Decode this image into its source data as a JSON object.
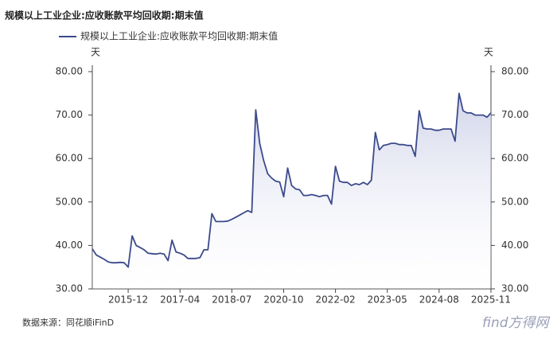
{
  "chart_data": {
    "type": "line",
    "title": "规模以上工业企业:应收账款平均回收期:期末值",
    "y_unit": "天",
    "y2_unit": "天",
    "source": "数据来源：同花顺iFinD",
    "watermark": "find方得网",
    "categories": [
      null,
      null,
      null,
      null,
      null,
      null,
      null,
      null,
      null,
      "2015-12",
      null,
      null,
      null,
      null,
      null,
      null,
      null,
      null,
      null,
      null,
      null,
      null,
      "2017-04",
      null,
      null,
      null,
      null,
      null,
      null,
      null,
      null,
      null,
      null,
      null,
      null,
      "2018-07",
      null,
      null,
      null,
      null,
      null,
      null,
      null,
      null,
      null,
      null,
      null,
      null,
      "2020-10",
      null,
      null,
      null,
      null,
      null,
      null,
      null,
      null,
      null,
      null,
      null,
      null,
      "2022-02",
      null,
      null,
      null,
      null,
      null,
      null,
      null,
      null,
      null,
      null,
      null,
      null,
      "2023-05",
      null,
      null,
      null,
      null,
      null,
      null,
      null,
      null,
      null,
      null,
      null,
      null,
      "2024-08",
      null,
      null,
      null,
      null,
      null,
      null,
      null,
      null,
      null,
      null,
      null,
      null,
      "2025-11"
    ],
    "series": [
      {
        "name": "规模以上工业企业:应收账款平均回收期:期末值",
        "color": "#3b4a8c",
        "values": [
          39.2,
          37.8,
          37.3,
          36.8,
          36.2,
          36,
          36,
          36.1,
          36,
          35,
          42.2,
          40,
          39.5,
          39,
          38.2,
          38.1,
          38,
          38.2,
          38,
          36.5,
          41.2,
          38.5,
          38.2,
          37.8,
          37,
          37,
          37,
          37.2,
          39,
          39,
          47.3,
          45.5,
          45.5,
          45.5,
          45.6,
          46,
          46.5,
          47,
          47.5,
          48,
          47.6,
          71.2,
          63.5,
          59.5,
          56.5,
          55.5,
          54.8,
          54.6,
          51.2,
          57.8,
          53.8,
          53,
          52.8,
          51.5,
          51.5,
          51.7,
          51.5,
          51.2,
          51.5,
          51.5,
          49.5,
          58.2,
          54.8,
          54.5,
          54.5,
          53.8,
          54.2,
          54,
          54.5,
          54,
          55,
          66,
          62,
          63,
          63.2,
          63.5,
          63.5,
          63.2,
          63.2,
          63,
          63,
          60.5,
          71,
          67,
          66.8,
          66.8,
          66.5,
          66.5,
          66.8,
          66.8,
          66.8,
          64,
          75,
          71,
          70.5,
          70.5,
          70,
          70,
          70,
          69.5,
          70.5
        ]
      }
    ],
    "ylim": [
      30,
      80
    ],
    "yticks": [
      {
        "value": 30,
        "label": "30.00"
      },
      {
        "value": 40,
        "label": "40.00"
      },
      {
        "value": 50,
        "label": "50.00"
      },
      {
        "value": 60,
        "label": "60.00"
      },
      {
        "value": 70,
        "label": "70.00"
      },
      {
        "value": 80,
        "label": "80.00"
      }
    ],
    "y2lim": [
      30,
      80
    ],
    "y2ticks": [
      {
        "value": 30,
        "label": "30.00"
      },
      {
        "value": 40,
        "label": "40.00"
      },
      {
        "value": 50,
        "label": "50.00"
      },
      {
        "value": 60,
        "label": "60.00"
      },
      {
        "value": 70,
        "label": "70.00"
      },
      {
        "value": 80,
        "label": "80.00"
      }
    ]
  }
}
